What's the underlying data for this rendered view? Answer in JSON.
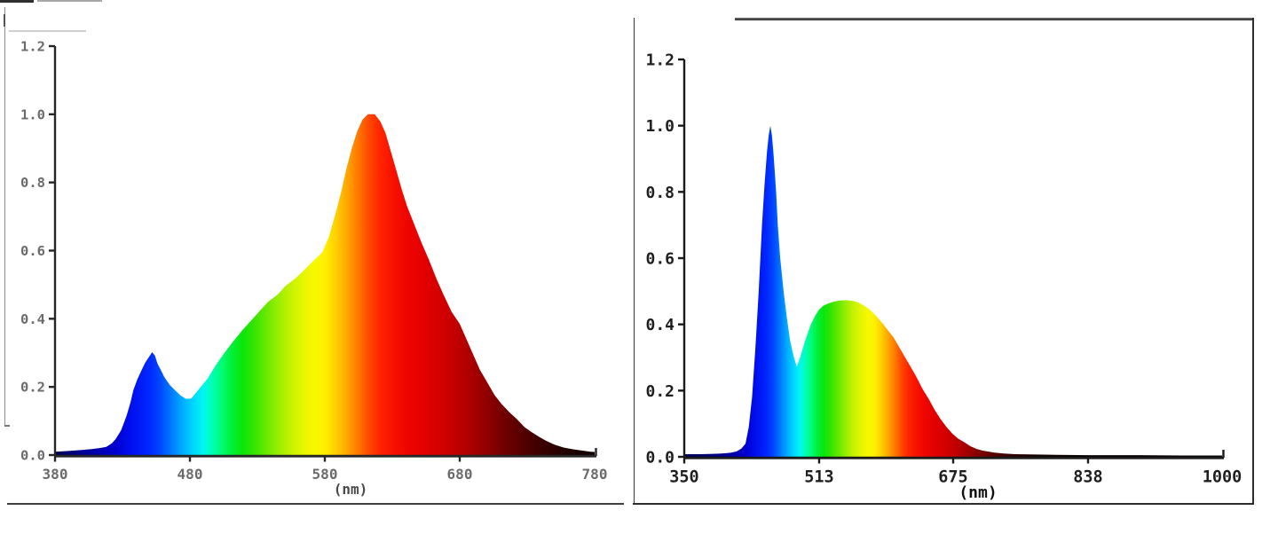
{
  "page": {
    "background_color": "#ffffff"
  },
  "chart_data": [
    {
      "type": "area",
      "title": "",
      "xlabel": "(nm)",
      "ylabel": "",
      "xlim": [
        380,
        780
      ],
      "ylim": [
        0,
        1.2
      ],
      "x_ticks": [
        380,
        480,
        580,
        680,
        780
      ],
      "x_tick_labels": [
        "380",
        "480",
        "580",
        "680",
        "780"
      ],
      "y_ticks": [
        0,
        0.2,
        0.4,
        0.6,
        0.8,
        1.0,
        1.2
      ],
      "y_tick_labels": [
        "0.0",
        "0.2",
        "0.4",
        "0.6",
        "0.8",
        "1.0",
        "1.2"
      ],
      "grid": false,
      "fill": "spectral-wavelength-gradient",
      "tick_label_color": "#6b6b6b",
      "axis_color": "#262626",
      "unit_label_color": "#4a4a4a",
      "points": [
        [
          380,
          0.01
        ],
        [
          390,
          0.012
        ],
        [
          400,
          0.015
        ],
        [
          408,
          0.018
        ],
        [
          414,
          0.021
        ],
        [
          418,
          0.024
        ],
        [
          422,
          0.034
        ],
        [
          425,
          0.047
        ],
        [
          429,
          0.073
        ],
        [
          433,
          0.115
        ],
        [
          436,
          0.155
        ],
        [
          438,
          0.19
        ],
        [
          441,
          0.222
        ],
        [
          444,
          0.248
        ],
        [
          447,
          0.272
        ],
        [
          450,
          0.29
        ],
        [
          452,
          0.302
        ],
        [
          454,
          0.292
        ],
        [
          456,
          0.268
        ],
        [
          459,
          0.245
        ],
        [
          461,
          0.229
        ],
        [
          465,
          0.206
        ],
        [
          469,
          0.19
        ],
        [
          473,
          0.175
        ],
        [
          477,
          0.165
        ],
        [
          481,
          0.166
        ],
        [
          486,
          0.19
        ],
        [
          493,
          0.224
        ],
        [
          499,
          0.263
        ],
        [
          506,
          0.302
        ],
        [
          512,
          0.333
        ],
        [
          519,
          0.367
        ],
        [
          525,
          0.393
        ],
        [
          532,
          0.424
        ],
        [
          538,
          0.45
        ],
        [
          545,
          0.471
        ],
        [
          551,
          0.497
        ],
        [
          558,
          0.518
        ],
        [
          565,
          0.544
        ],
        [
          571,
          0.568
        ],
        [
          578,
          0.594
        ],
        [
          583,
          0.64
        ],
        [
          588,
          0.71
        ],
        [
          592,
          0.77
        ],
        [
          596,
          0.84
        ],
        [
          600,
          0.9
        ],
        [
          604,
          0.95
        ],
        [
          608,
          0.985
        ],
        [
          612,
          1.0
        ],
        [
          617,
          1.0
        ],
        [
          621,
          0.98
        ],
        [
          625,
          0.945
        ],
        [
          629,
          0.89
        ],
        [
          633,
          0.835
        ],
        [
          637,
          0.78
        ],
        [
          641,
          0.73
        ],
        [
          646,
          0.68
        ],
        [
          652,
          0.62
        ],
        [
          657,
          0.575
        ],
        [
          663,
          0.515
        ],
        [
          668,
          0.47
        ],
        [
          674,
          0.42
        ],
        [
          680,
          0.385
        ],
        [
          685,
          0.34
        ],
        [
          690,
          0.295
        ],
        [
          695,
          0.25
        ],
        [
          700,
          0.216
        ],
        [
          706,
          0.175
        ],
        [
          711,
          0.15
        ],
        [
          717,
          0.125
        ],
        [
          722,
          0.107
        ],
        [
          728,
          0.082
        ],
        [
          733,
          0.068
        ],
        [
          739,
          0.053
        ],
        [
          744,
          0.042
        ],
        [
          750,
          0.031
        ],
        [
          757,
          0.022
        ],
        [
          764,
          0.017
        ],
        [
          771,
          0.013
        ],
        [
          777,
          0.01
        ],
        [
          780,
          0.009
        ]
      ]
    },
    {
      "type": "area",
      "title": "",
      "xlabel": "(nm)",
      "ylabel": "",
      "xlim": [
        350,
        1000
      ],
      "ylim": [
        0,
        1.2
      ],
      "x_ticks": [
        350,
        513,
        675,
        838,
        1000
      ],
      "x_tick_labels": [
        "350",
        "513",
        "675",
        "838",
        "1000"
      ],
      "y_ticks": [
        0,
        0.2,
        0.4,
        0.6,
        0.8,
        1.0,
        1.2
      ],
      "y_tick_labels": [
        "0.0",
        "0.2",
        "0.4",
        "0.6",
        "0.8",
        "1.0",
        "1.2"
      ],
      "grid": false,
      "fill": "spectral-wavelength-gradient",
      "tick_label_color": "#1f1f1f",
      "axis_color": "#1a1a1a",
      "unit_label_color": "#111111",
      "points": [
        [
          350,
          0.008
        ],
        [
          370,
          0.008
        ],
        [
          385,
          0.009
        ],
        [
          395,
          0.01
        ],
        [
          405,
          0.012
        ],
        [
          413,
          0.016
        ],
        [
          419,
          0.025
        ],
        [
          424,
          0.04
        ],
        [
          428,
          0.09
        ],
        [
          432,
          0.18
        ],
        [
          436,
          0.33
        ],
        [
          440,
          0.5
        ],
        [
          444,
          0.7
        ],
        [
          447,
          0.82
        ],
        [
          450,
          0.92
        ],
        [
          452,
          0.97
        ],
        [
          454,
          1.0
        ],
        [
          456,
          0.97
        ],
        [
          458,
          0.91
        ],
        [
          461,
          0.8
        ],
        [
          463,
          0.7
        ],
        [
          466,
          0.6
        ],
        [
          470,
          0.5
        ],
        [
          474,
          0.42
        ],
        [
          478,
          0.35
        ],
        [
          482,
          0.305
        ],
        [
          486,
          0.272
        ],
        [
          490,
          0.3
        ],
        [
          496,
          0.35
        ],
        [
          503,
          0.4
        ],
        [
          508,
          0.425
        ],
        [
          513,
          0.445
        ],
        [
          518,
          0.456
        ],
        [
          524,
          0.463
        ],
        [
          530,
          0.468
        ],
        [
          538,
          0.472
        ],
        [
          546,
          0.473
        ],
        [
          554,
          0.471
        ],
        [
          560,
          0.467
        ],
        [
          567,
          0.457
        ],
        [
          574,
          0.445
        ],
        [
          581,
          0.428
        ],
        [
          588,
          0.408
        ],
        [
          595,
          0.386
        ],
        [
          603,
          0.36
        ],
        [
          610,
          0.33
        ],
        [
          617,
          0.3
        ],
        [
          624,
          0.27
        ],
        [
          631,
          0.239
        ],
        [
          638,
          0.205
        ],
        [
          646,
          0.172
        ],
        [
          653,
          0.14
        ],
        [
          660,
          0.113
        ],
        [
          667,
          0.09
        ],
        [
          674,
          0.07
        ],
        [
          681,
          0.055
        ],
        [
          689,
          0.043
        ],
        [
          696,
          0.032
        ],
        [
          703,
          0.024
        ],
        [
          710,
          0.019
        ],
        [
          717,
          0.016
        ],
        [
          724,
          0.013
        ],
        [
          736,
          0.01
        ],
        [
          750,
          0.008
        ],
        [
          775,
          0.007
        ],
        [
          800,
          0.006
        ],
        [
          838,
          0.005
        ],
        [
          900,
          0.005
        ],
        [
          950,
          0.004
        ],
        [
          1000,
          0.004
        ]
      ]
    }
  ],
  "spectrum_palette": [
    [
      350,
      "#000050"
    ],
    [
      400,
      "#000090"
    ],
    [
      425,
      "#0000d0"
    ],
    [
      437,
      "#0010f0"
    ],
    [
      450,
      "#0028ff"
    ],
    [
      458,
      "#0048ff"
    ],
    [
      466,
      "#0078ff"
    ],
    [
      474,
      "#00aaff"
    ],
    [
      482,
      "#00d4ff"
    ],
    [
      490,
      "#00f8f0"
    ],
    [
      497,
      "#00ffb0"
    ],
    [
      504,
      "#00fc70"
    ],
    [
      511,
      "#00f038"
    ],
    [
      519,
      "#0ae60a"
    ],
    [
      527,
      "#32e400"
    ],
    [
      536,
      "#64e800"
    ],
    [
      545,
      "#96ee00"
    ],
    [
      554,
      "#c2f200"
    ],
    [
      563,
      "#e2f600"
    ],
    [
      572,
      "#f8f800"
    ],
    [
      580,
      "#fff000"
    ],
    [
      588,
      "#ffd000"
    ],
    [
      596,
      "#ffa800"
    ],
    [
      604,
      "#ff7c00"
    ],
    [
      612,
      "#ff4c00"
    ],
    [
      620,
      "#ff2800"
    ],
    [
      630,
      "#f81200"
    ],
    [
      642,
      "#ee0400"
    ],
    [
      655,
      "#e00000"
    ],
    [
      668,
      "#d00000"
    ],
    [
      680,
      "#bc0000"
    ],
    [
      692,
      "#a20000"
    ],
    [
      704,
      "#860000"
    ],
    [
      716,
      "#6a0000"
    ],
    [
      728,
      "#520000"
    ],
    [
      740,
      "#3c0000"
    ],
    [
      752,
      "#2a0000"
    ],
    [
      764,
      "#1c0000"
    ],
    [
      778,
      "#120000"
    ],
    [
      800,
      "#0c0000"
    ],
    [
      1000,
      "#060000"
    ]
  ]
}
